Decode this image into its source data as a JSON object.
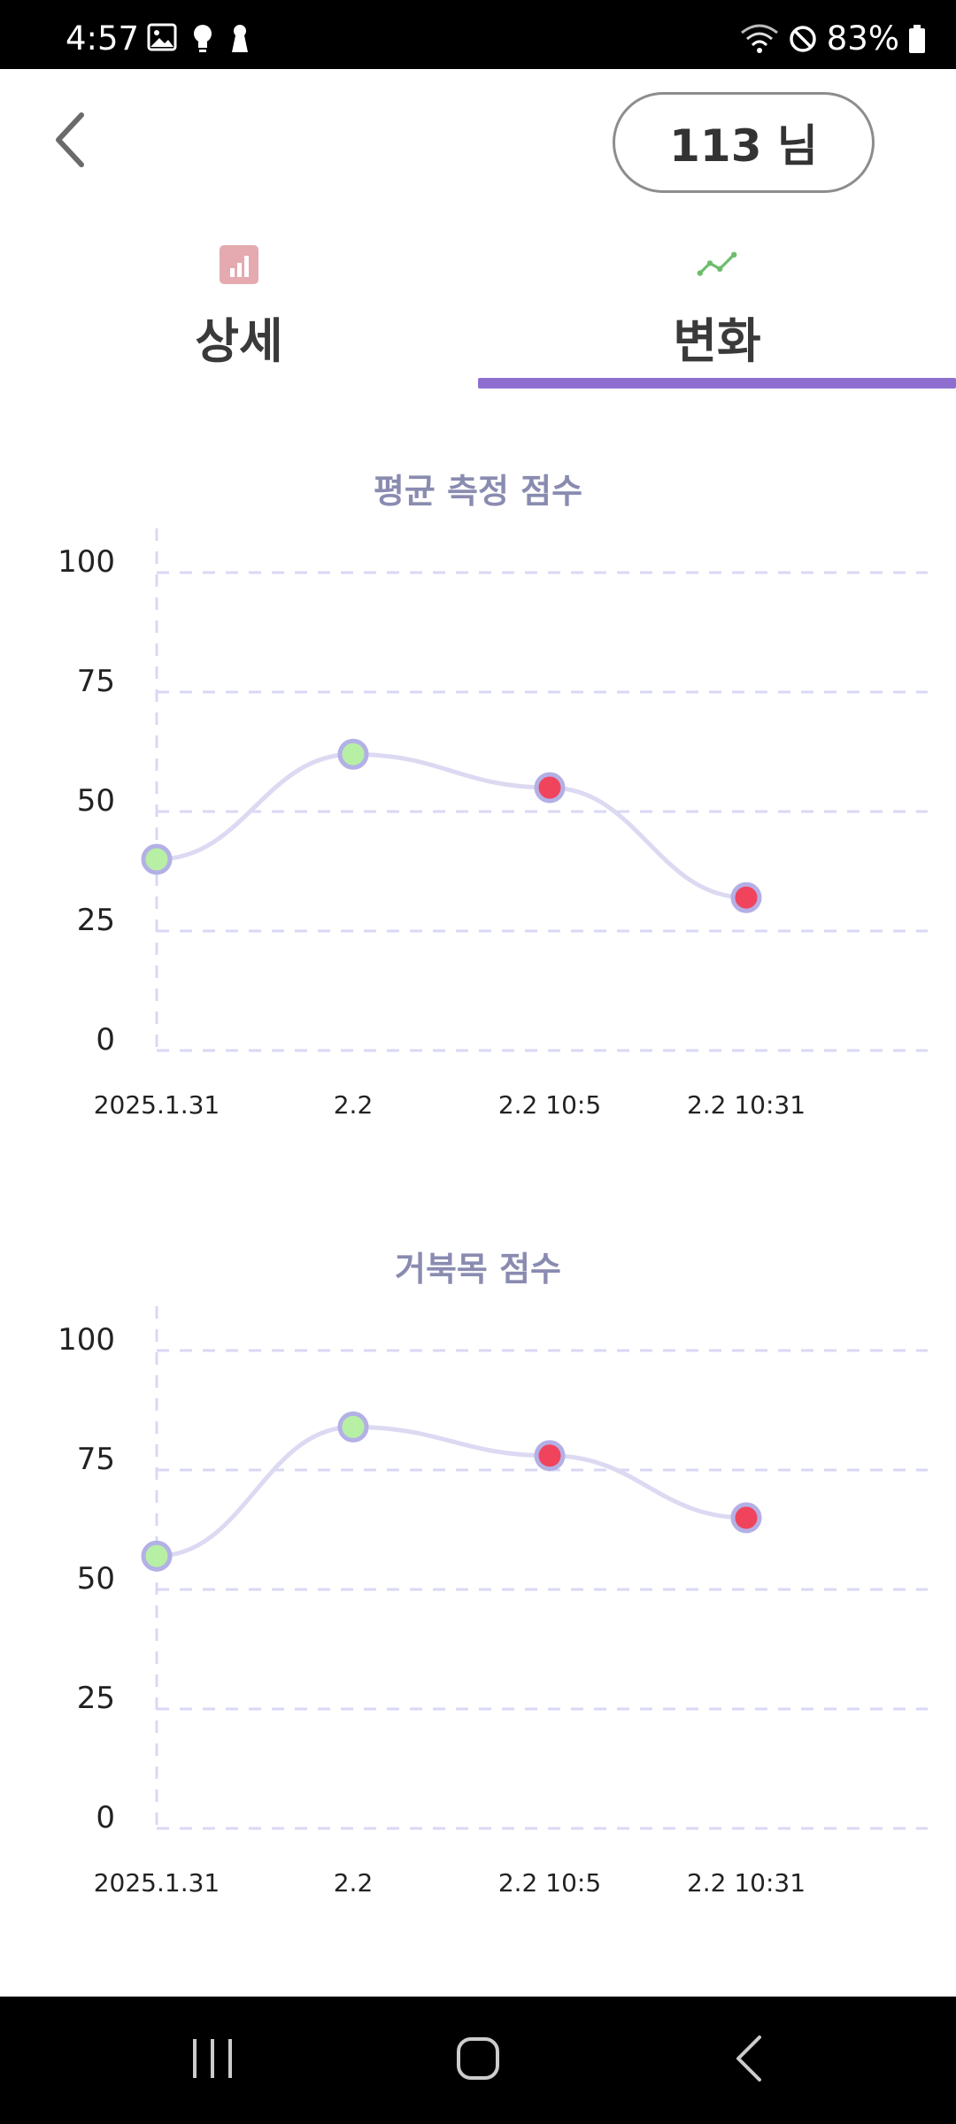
{
  "status_bar": {
    "time": "4:57",
    "left_icons": [
      "image-icon",
      "lightbulb-icon",
      "keyhole-icon"
    ],
    "right_icons": [
      "wifi-icon",
      "do-not-disturb-icon",
      "battery-icon"
    ],
    "battery": "83%"
  },
  "header": {
    "back_icon": "chevron-left-icon",
    "user_label": "113 님"
  },
  "tabs": [
    {
      "label": "상세",
      "icon": "bar-chart-icon",
      "active": false
    },
    {
      "label": "변화",
      "icon": "line-chart-icon",
      "active": true
    }
  ],
  "colors": {
    "accent": "#8e6fd0",
    "line": "#dcd9f2",
    "grid": "#d9d8f5",
    "point_good": "#b7f0a4",
    "point_bad": "#f0445c",
    "point_border": "#b3b0e6",
    "title": "#8a8bb0"
  },
  "chart_data": [
    {
      "type": "line",
      "title": "평균 측정 점수",
      "categories": [
        "2025.1.31",
        "2.2",
        "2.2 10:5",
        "2.2 10:31"
      ],
      "series": [
        {
          "values": [
            40,
            62,
            55,
            32
          ]
        }
      ],
      "point_status": [
        "good",
        "good",
        "bad",
        "bad"
      ],
      "y_ticks": [
        0,
        25,
        50,
        75,
        100
      ],
      "ylim": [
        0,
        100
      ],
      "grid": true
    },
    {
      "type": "line",
      "title": "거북목 점수",
      "categories": [
        "2025.1.31",
        "2.2",
        "2.2 10:5",
        "2.2 10:31"
      ],
      "series": [
        {
          "values": [
            57,
            84,
            78,
            65
          ]
        }
      ],
      "point_status": [
        "good",
        "good",
        "bad",
        "bad"
      ],
      "y_ticks": [
        0,
        25,
        50,
        75,
        100
      ],
      "ylim": [
        0,
        100
      ],
      "grid": true
    }
  ],
  "nav_bar": {
    "buttons": [
      "recent-apps-icon",
      "home-icon",
      "back-nav-icon"
    ]
  }
}
